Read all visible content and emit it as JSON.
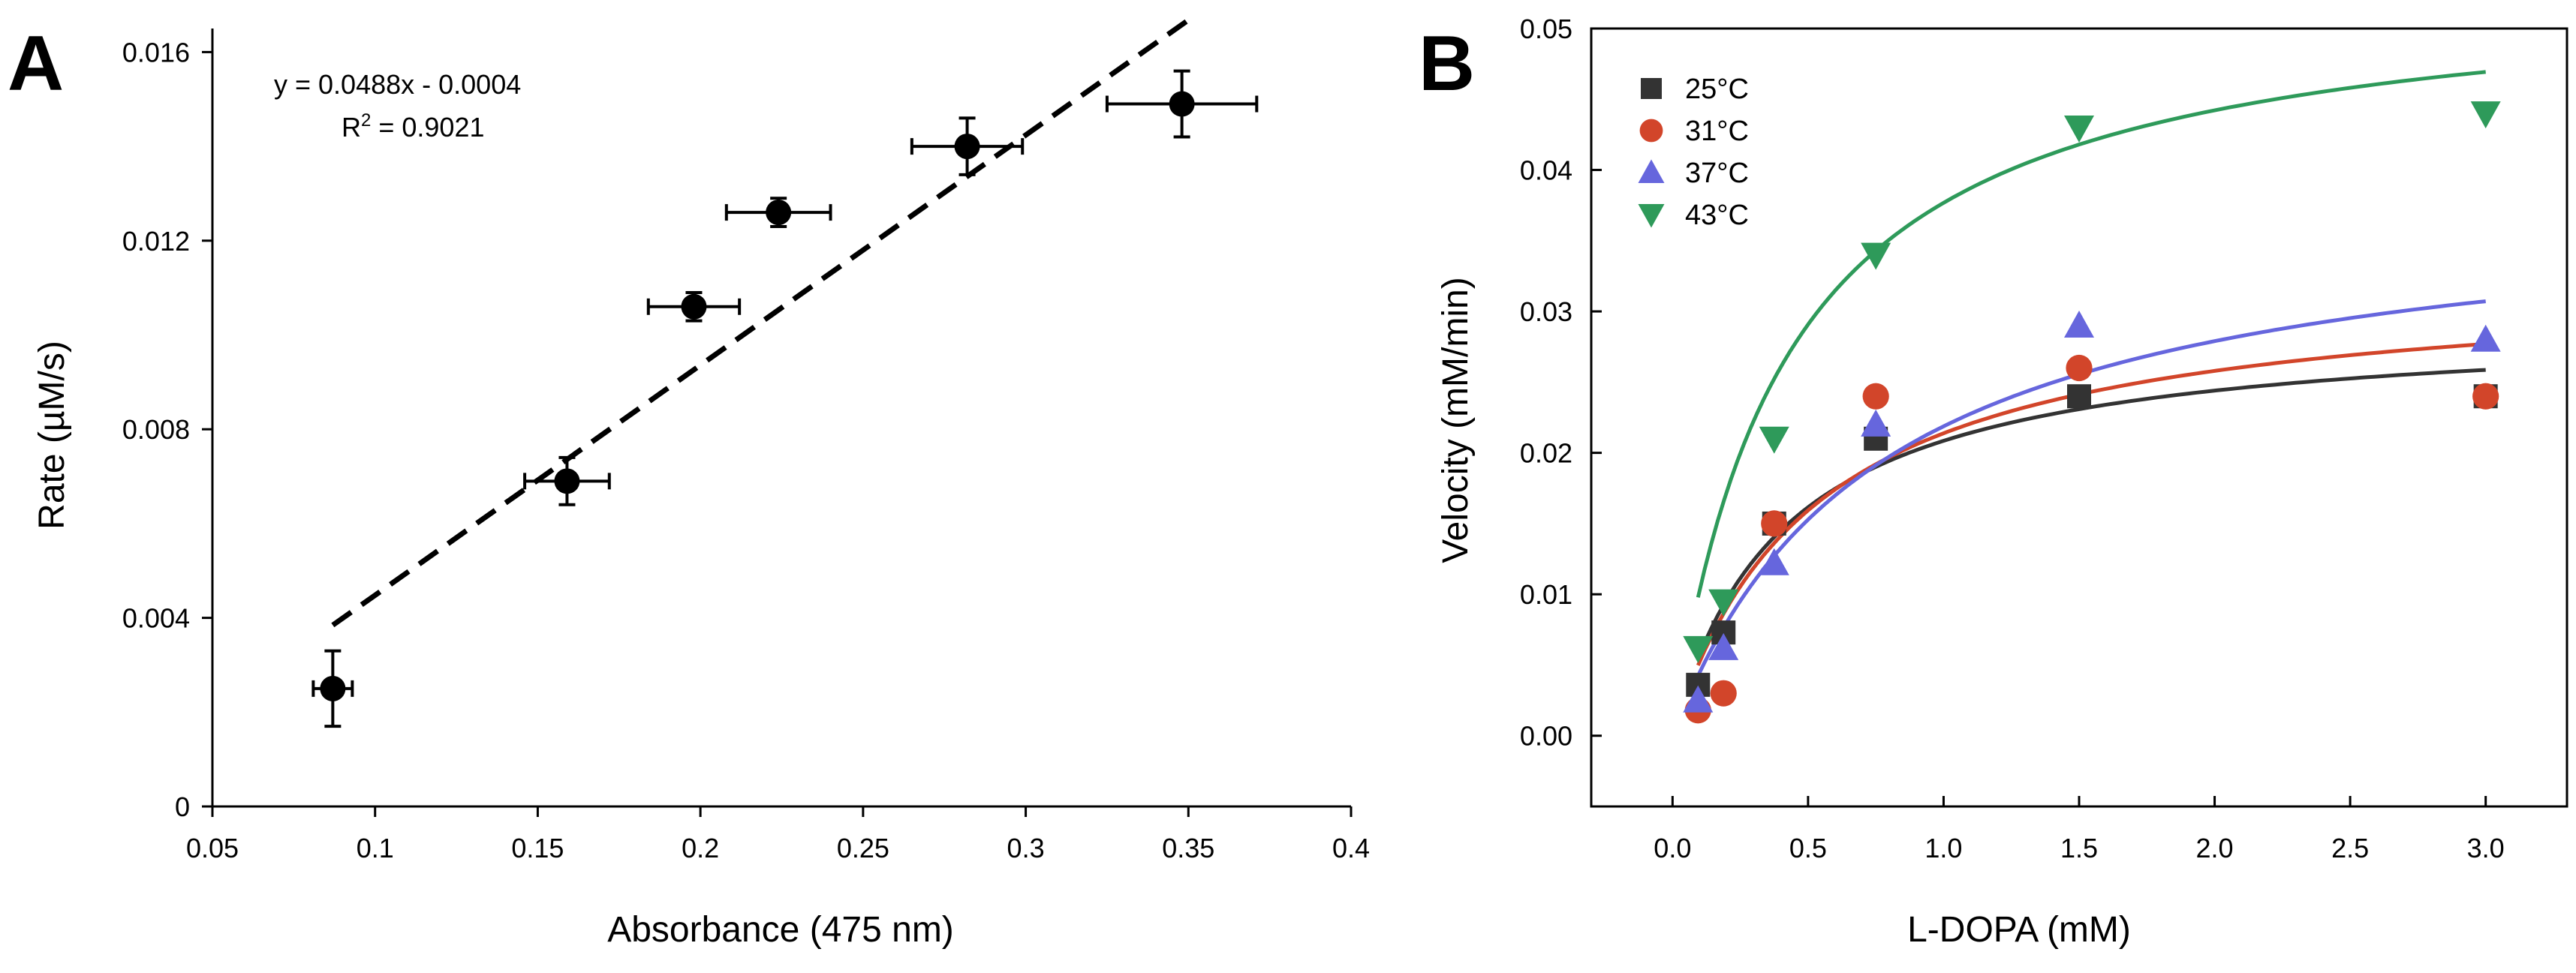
{
  "chart_data": [
    {
      "panel": "A",
      "type": "scatter",
      "xlabel": "Absorbance (475 nm)",
      "ylabel": "Rate (µM/s)",
      "xlim": [
        0.05,
        0.4
      ],
      "ylim": [
        0,
        0.0165
      ],
      "x_ticks": [
        0.05,
        0.1,
        0.15,
        0.2,
        0.25,
        0.3,
        0.35,
        0.4
      ],
      "x_tick_labels": [
        "0.05",
        "0.1",
        "0.15",
        "0.2",
        "0.25",
        "0.3",
        "0.35",
        "0.4"
      ],
      "y_ticks": [
        0,
        0.004,
        0.008,
        0.012,
        0.016
      ],
      "y_tick_labels": [
        "0",
        "0.004",
        "0.008",
        "0.012",
        "0.016"
      ],
      "points": [
        {
          "x": 0.087,
          "y": 0.0025,
          "xerr": 0.006,
          "yerr": 0.0008
        },
        {
          "x": 0.159,
          "y": 0.0069,
          "xerr": 0.013,
          "yerr": 0.0005
        },
        {
          "x": 0.198,
          "y": 0.0106,
          "xerr": 0.014,
          "yerr": 0.0003
        },
        {
          "x": 0.224,
          "y": 0.0126,
          "xerr": 0.016,
          "yerr": 0.0003
        },
        {
          "x": 0.282,
          "y": 0.014,
          "xerr": 0.017,
          "yerr": 0.0006
        },
        {
          "x": 0.348,
          "y": 0.0149,
          "xerr": 0.023,
          "yerr": 0.0007
        }
      ],
      "trendline": {
        "slope": 0.0488,
        "intercept": -0.0004,
        "x_range": [
          0.087,
          0.35
        ],
        "style": "dashed"
      },
      "equation": "y = 0.0488x - 0.0004",
      "r_squared_label": "R",
      "r_squared_sup": "2",
      "r_squared_value": " = 0.9021",
      "grid": false
    },
    {
      "panel": "B",
      "type": "scatter",
      "xlabel": "L-DOPA (mM)",
      "ylabel": "Velocity (mM/min)",
      "xlim": [
        -0.3,
        3.3
      ],
      "ylim": [
        -0.005,
        0.05
      ],
      "x_ticks": [
        0,
        0.5,
        1,
        1.5,
        2,
        2.5,
        3
      ],
      "x_tick_labels": [
        "0.0",
        "0.5",
        "1.0",
        "1.5",
        "2.0",
        "2.5",
        "3.0"
      ],
      "y_ticks": [
        0,
        0.01,
        0.02,
        0.03,
        0.04,
        0.05
      ],
      "y_tick_labels": [
        "0.00",
        "0.01",
        "0.02",
        "0.03",
        "0.04",
        "0.05"
      ],
      "legend_position": "top-left",
      "grid": false,
      "series": [
        {
          "name": "25°C",
          "marker": "square",
          "color": "#333333",
          "x": [
            0.094,
            0.188,
            0.375,
            0.75,
            1.5,
            3.0
          ],
          "y": [
            0.0036,
            0.0073,
            0.015,
            0.021,
            0.024,
            0.024
          ],
          "fit": {
            "model": "michaelis-menten",
            "vmax": 0.0294,
            "km": 0.41
          }
        },
        {
          "name": "31°C",
          "marker": "circle",
          "color": "#d2452a",
          "x": [
            0.094,
            0.188,
            0.375,
            0.75,
            1.5,
            3.0
          ],
          "y": [
            0.0018,
            0.003,
            0.015,
            0.024,
            0.026,
            0.024
          ],
          "fit": {
            "model": "michaelis-menten",
            "vmax": 0.0325,
            "km": 0.52
          }
        },
        {
          "name": "37°C",
          "marker": "triangle-up",
          "color": "#6666dd",
          "x": [
            0.094,
            0.188,
            0.375,
            0.75,
            1.5,
            3.0
          ],
          "y": [
            0.0025,
            0.0062,
            0.0122,
            0.022,
            0.029,
            0.028
          ],
          "fit": {
            "model": "michaelis-menten",
            "vmax": 0.0385,
            "km": 0.76
          }
        },
        {
          "name": "43°C",
          "marker": "triangle-down",
          "color": "#2e9a5a",
          "x": [
            0.094,
            0.188,
            0.375,
            0.75,
            1.5,
            3.0
          ],
          "y": [
            0.0062,
            0.0095,
            0.021,
            0.034,
            0.043,
            0.044
          ],
          "fit": {
            "model": "michaelis-menten",
            "vmax": 0.0535,
            "km": 0.42
          }
        }
      ]
    }
  ]
}
